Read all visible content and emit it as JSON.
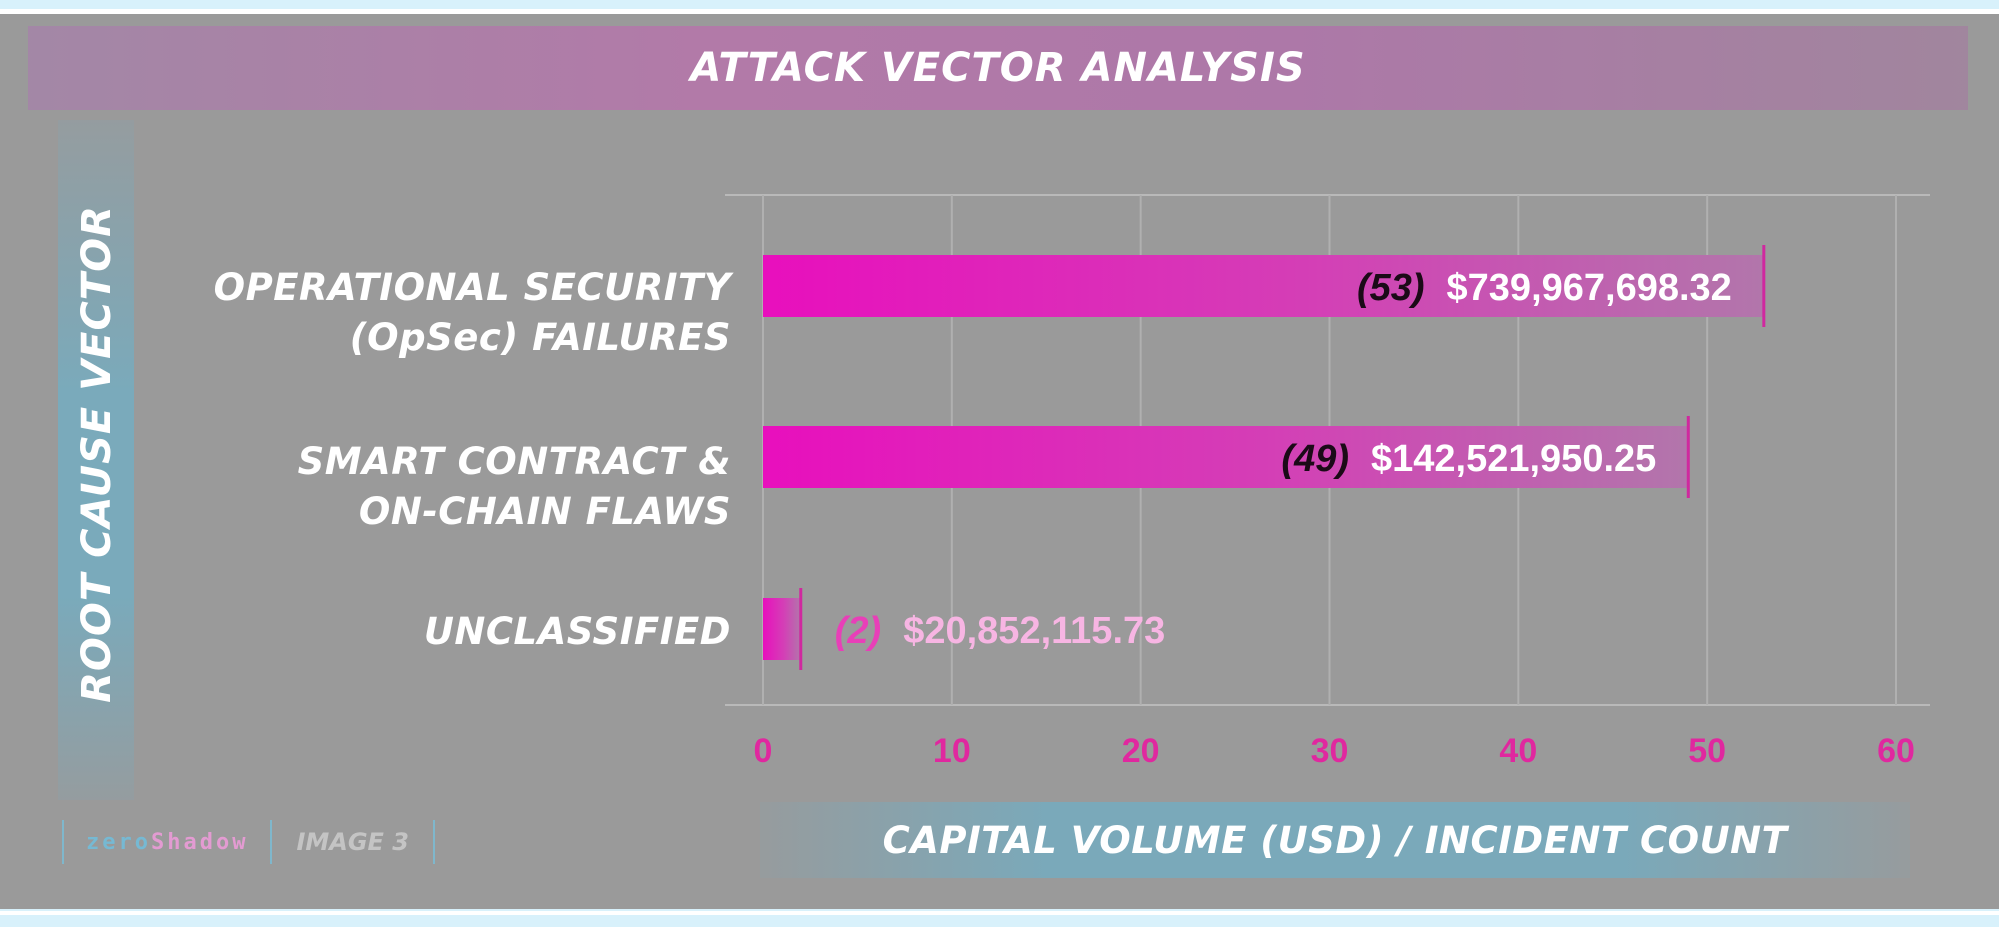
{
  "branding": {
    "name_part1": "zero",
    "name_part2": "Shadow",
    "tag": "IMAGE 3"
  },
  "colors": {
    "bar": "#e616bf",
    "axis_tick": "#e0289f",
    "count_dark": "#1b0a17",
    "count_light": "#e83fb8",
    "label_light": "#f7b5e3"
  },
  "chart_data": {
    "type": "bar",
    "orientation": "horizontal",
    "title": "ATTACK VECTOR ANALYSIS",
    "xlabel": "CAPITAL VOLUME (USD) / INCIDENT COUNT",
    "ylabel": "ROOT CAUSE VECTOR",
    "xlim": [
      0,
      60
    ],
    "xticks": [
      "0",
      "10",
      "20",
      "30",
      "40",
      "50",
      "60"
    ],
    "grid": true,
    "categories": [
      {
        "line1": "OPERATIONAL SECURITY",
        "line2": "(OpSec) FAILURES"
      },
      {
        "line1": "SMART CONTRACT &",
        "line2": "ON-CHAIN FLAWS"
      },
      {
        "line1": "UNCLASSIFIED",
        "line2": ""
      }
    ],
    "values": [
      53,
      49,
      2
    ],
    "count_labels": [
      "(53)",
      "(49)",
      "(2)"
    ],
    "amount_labels": [
      "$739,967,698.32",
      "$142,521,950.25",
      "$20,852,115.73"
    ]
  }
}
